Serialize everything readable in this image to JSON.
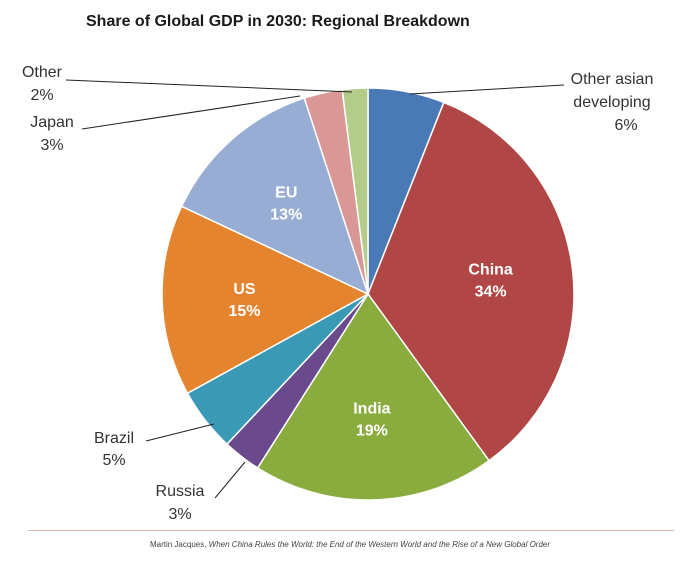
{
  "chart_data": {
    "type": "pie",
    "title": "Share of Global GDP in 2030: Regional Breakdown",
    "slices": [
      {
        "label": "Other asian developing",
        "label_lines": [
          "Other asian",
          "developing"
        ],
        "value_text": "6%",
        "value": 6,
        "color": "#4a7ab5",
        "label_position": "outside"
      },
      {
        "label": "China",
        "label_lines": [
          "China"
        ],
        "value_text": "34%",
        "value": 34,
        "color": "#b04645",
        "label_position": "inside"
      },
      {
        "label": "India",
        "label_lines": [
          "India"
        ],
        "value_text": "19%",
        "value": 19,
        "color": "#8aac3e",
        "label_position": "inside"
      },
      {
        "label": "Russia",
        "label_lines": [
          "Russia"
        ],
        "value_text": "3%",
        "value": 3,
        "color": "#6a4a8c",
        "label_position": "outside"
      },
      {
        "label": "Brazil",
        "label_lines": [
          "Brazil"
        ],
        "value_text": "5%",
        "value": 5,
        "color": "#3a9ab6",
        "label_position": "outside"
      },
      {
        "label": "US",
        "label_lines": [
          "US"
        ],
        "value_text": "15%",
        "value": 15,
        "color": "#e5842e",
        "label_position": "inside"
      },
      {
        "label": "EU",
        "label_lines": [
          "EU"
        ],
        "value_text": "13%",
        "value": 13,
        "color": "#98add4",
        "label_position": "inside"
      },
      {
        "label": "Japan",
        "label_lines": [
          "Japan"
        ],
        "value_text": "3%",
        "value": 3,
        "color": "#d99796",
        "label_position": "outside"
      },
      {
        "label": "Other",
        "label_lines": [
          "Other"
        ],
        "value_text": "2%",
        "value": 2,
        "color": "#b3cc8a",
        "label_position": "outside"
      }
    ]
  },
  "source": {
    "author": "Martin Jacques, ",
    "work": "When China Rules the World: the End of the Western World and the Rise of a New Global Order"
  }
}
